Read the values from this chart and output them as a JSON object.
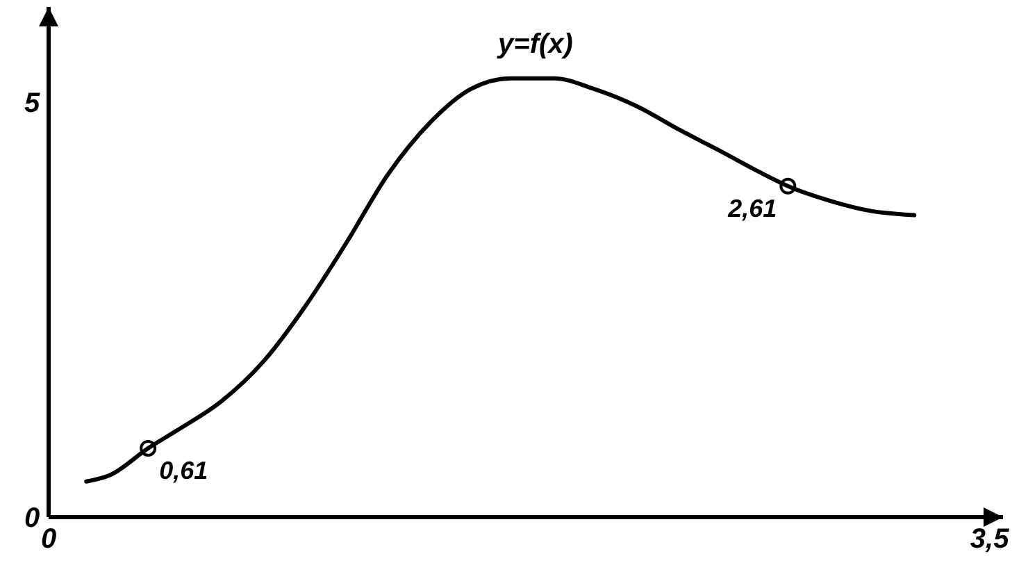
{
  "chart_data": {
    "type": "line",
    "title": "y=f(x)",
    "xlim": [
      0,
      3.55
    ],
    "ylim": [
      0,
      6.15
    ],
    "xticks": [
      {
        "value": 0,
        "label": "0"
      },
      {
        "value": 3.5,
        "label": "3,5"
      }
    ],
    "yticks": [
      {
        "value": 0,
        "label": "0"
      },
      {
        "value": 5,
        "label": "5"
      }
    ],
    "grid": false,
    "series": [
      {
        "color": "#000000",
        "marker": "none",
        "line_style": "solid",
        "x": [
          0.14,
          0.23,
          0.37,
          0.49,
          0.64,
          0.8,
          0.95,
          1.11,
          1.26,
          1.42,
          1.57,
          1.72,
          1.88,
          2.03,
          2.19,
          2.34,
          2.5,
          2.65,
          2.75,
          2.91,
          3.06,
          3.22
        ],
        "values": [
          0.43,
          0.51,
          0.83,
          1.07,
          1.39,
          1.88,
          2.52,
          3.32,
          4.12,
          4.76,
          5.16,
          5.29,
          5.29,
          5.16,
          4.95,
          4.68,
          4.41,
          4.15,
          3.99,
          3.81,
          3.69,
          3.64
        ]
      },
      {
        "type": "scatter",
        "color": "#000000",
        "marker": "circle",
        "x": [
          0.37,
          2.75
        ],
        "values": [
          0.83,
          3.99
        ]
      }
    ],
    "annotations": [
      {
        "text": "0,61",
        "x": 0.37,
        "y": 0.83
      },
      {
        "text": "2,61",
        "x": 2.75,
        "y": 3.99
      }
    ]
  }
}
